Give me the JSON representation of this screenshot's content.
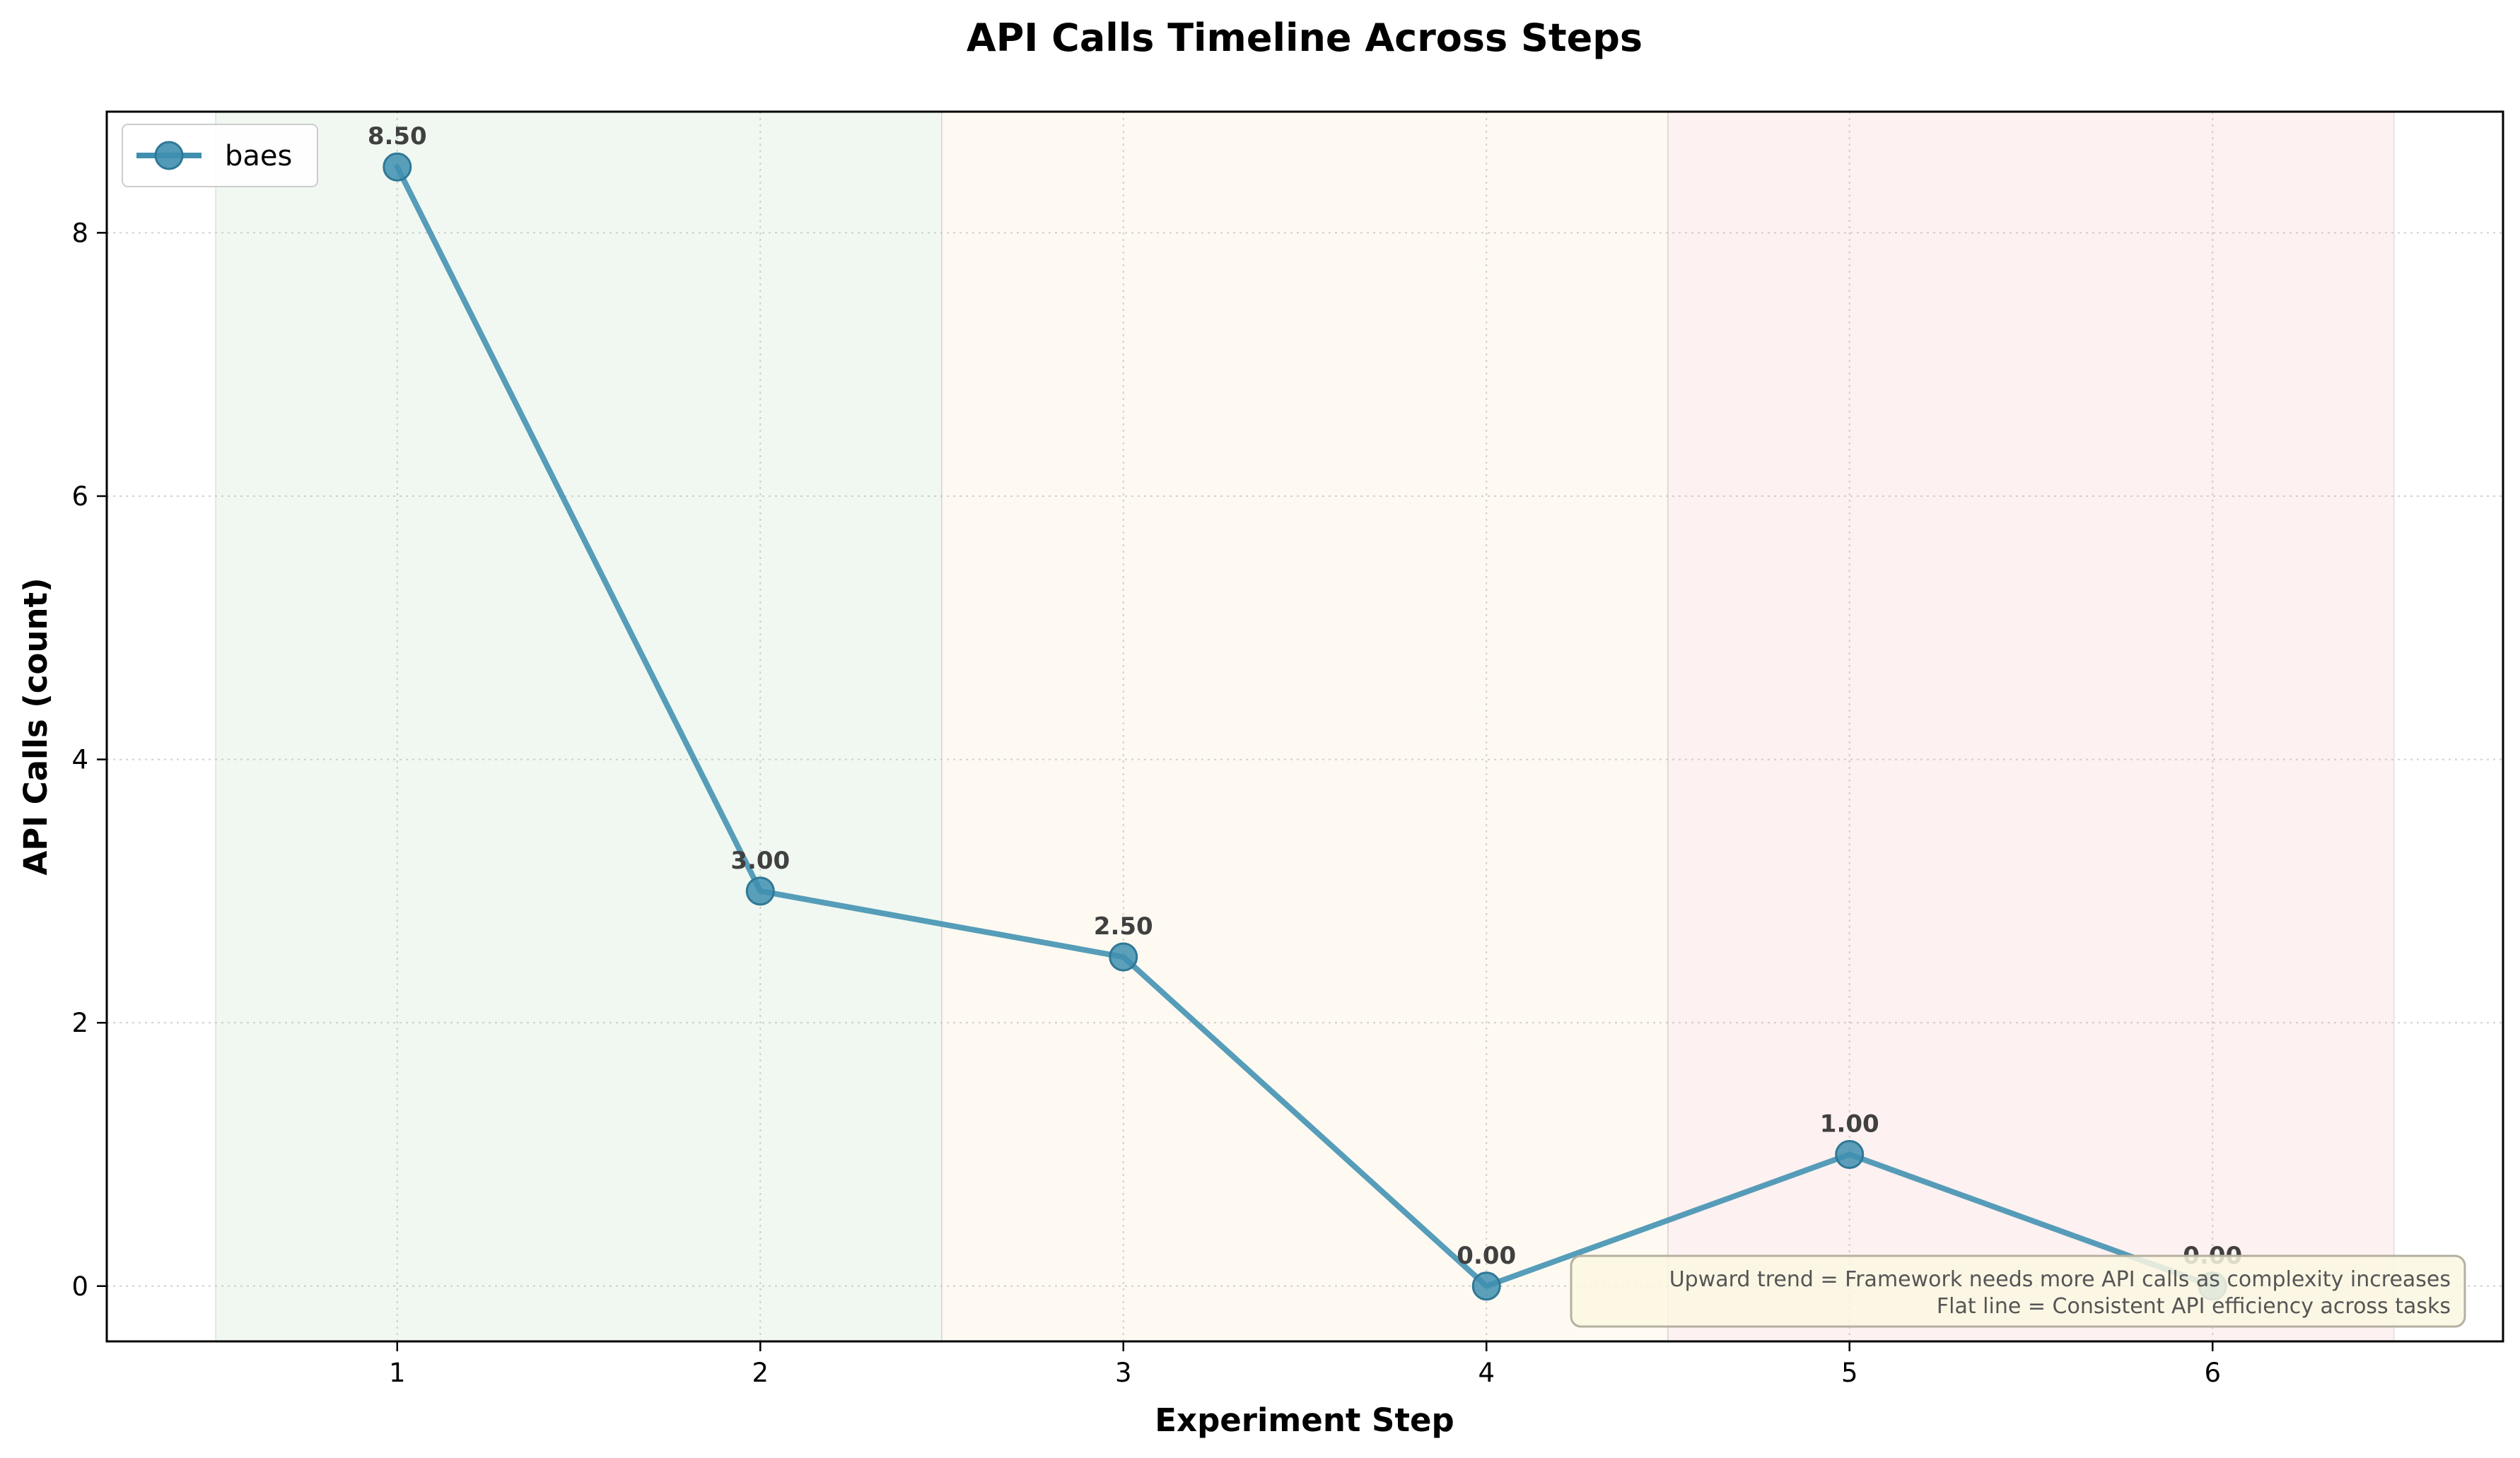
{
  "chart_data": {
    "type": "line",
    "title": "API Calls Timeline Across Steps",
    "xlabel": "Experiment Step",
    "ylabel": "API Calls (count)",
    "x": [
      1,
      2,
      3,
      4,
      5,
      6
    ],
    "xlim": [
      0.2,
      6.8
    ],
    "ylim": [
      -0.42,
      8.92
    ],
    "xticks": [
      "1",
      "2",
      "3",
      "4",
      "5",
      "6"
    ],
    "yticks": [
      "0",
      "2",
      "4",
      "6",
      "8"
    ],
    "grid": true,
    "legend_position": "top-left",
    "series": [
      {
        "name": "baes",
        "values": [
          8.5,
          3.0,
          2.5,
          0.0,
          1.0,
          0.0
        ],
        "data_labels": [
          "8.50",
          "3.00",
          "2.50",
          "0.00",
          "1.00",
          "0.00"
        ],
        "color": "#3f8fb0"
      }
    ],
    "bands": [
      {
        "from": 0.5,
        "to": 2.5,
        "color": "#e6f3e6"
      },
      {
        "from": 2.5,
        "to": 4.5,
        "color": "#fdf6e8"
      },
      {
        "from": 4.5,
        "to": 6.5,
        "color": "#fbe6e6"
      }
    ],
    "annotation": {
      "position": "bottom-right",
      "lines": [
        "Upward trend = Framework needs more API calls as complexity increases",
        "Flat line = Consistent API efficiency across tasks"
      ]
    }
  }
}
